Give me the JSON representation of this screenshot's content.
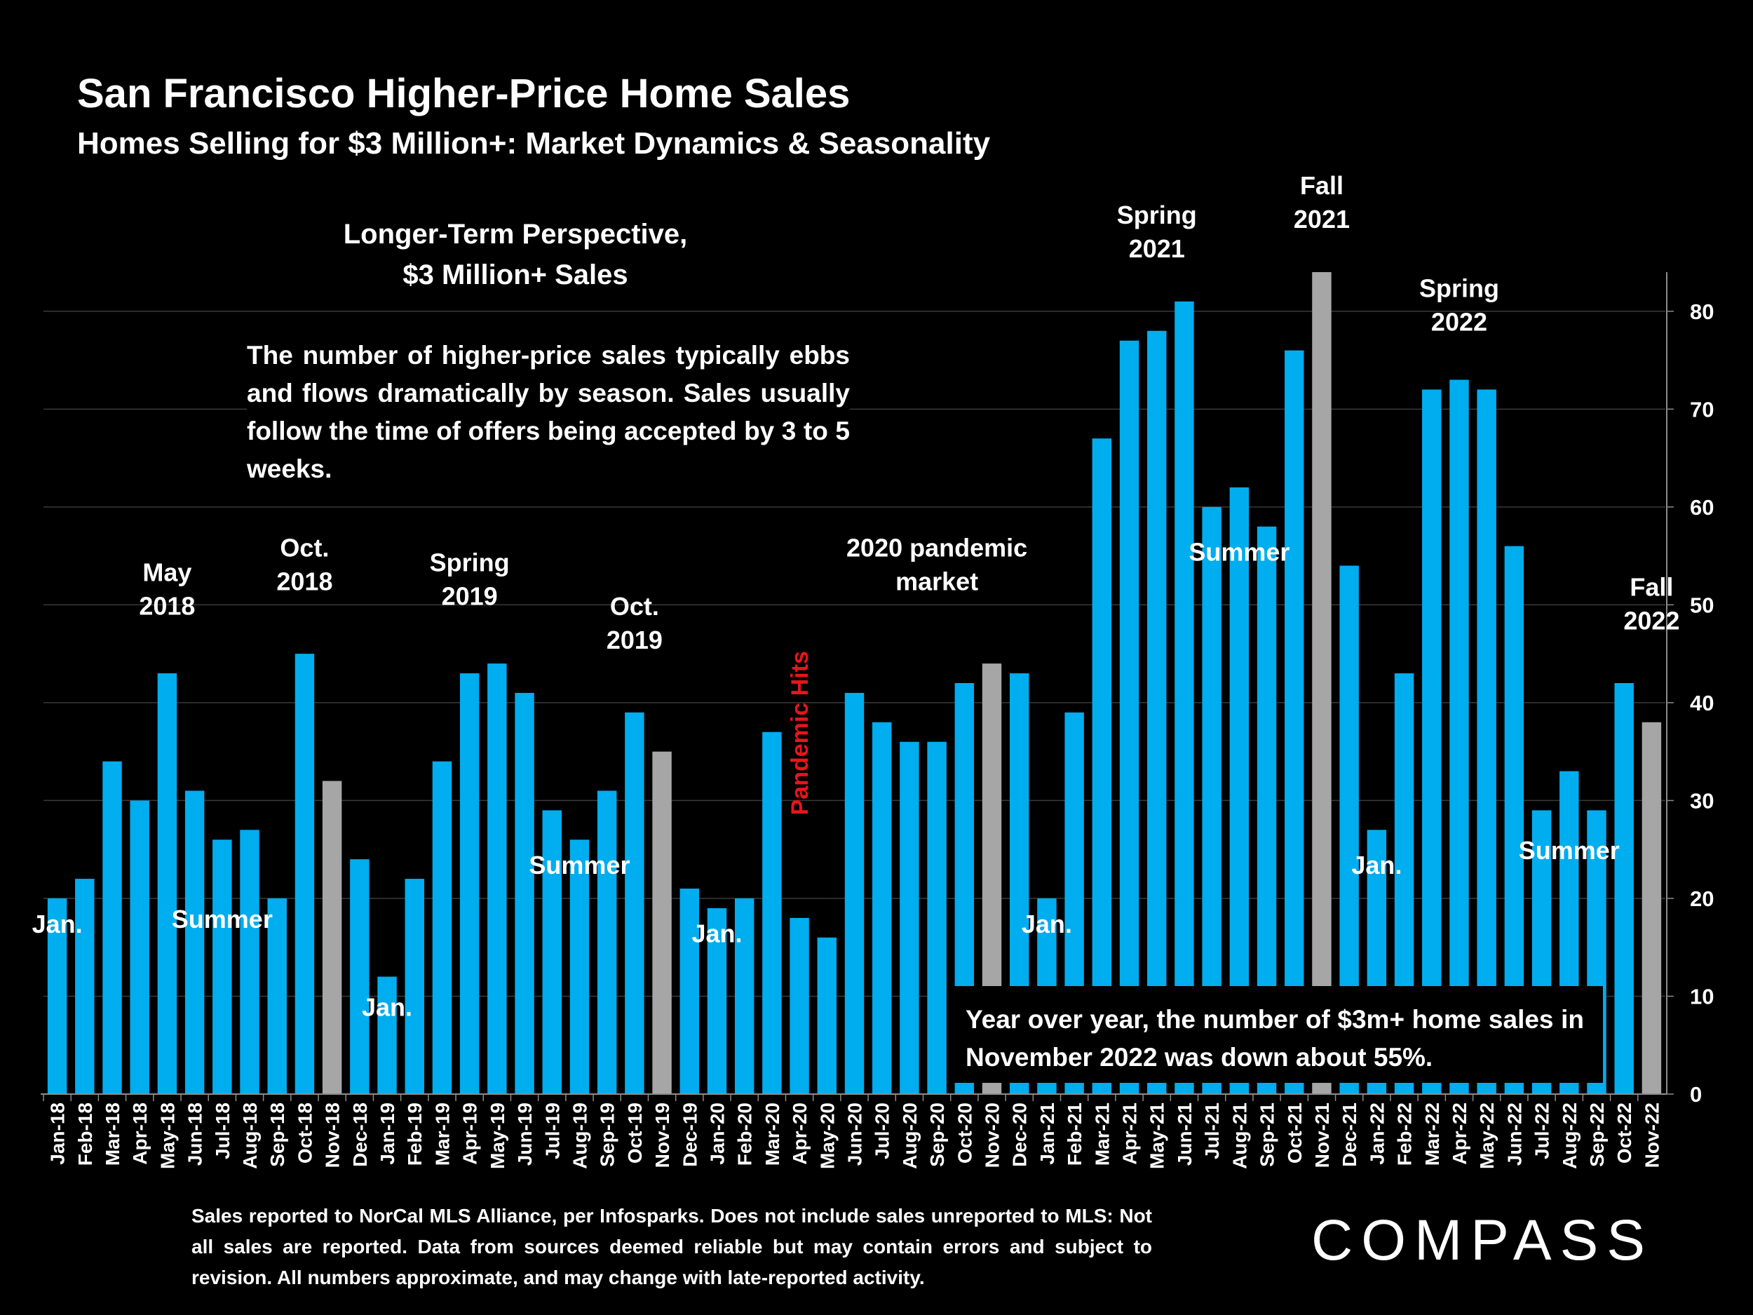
{
  "header": {
    "title": "San Francisco Higher-Price Home Sales",
    "subtitle": "Homes Selling for  $3 Million+: Market Dynamics & Seasonality"
  },
  "note": {
    "heading_line1": "Longer-Term Perspective,",
    "heading_line2": "$3 Million+ Sales",
    "body": "The number of higher-price sales typically ebbs and flows dramatically by season. Sales usually follow the time of offers being accepted by 3 to 5 weeks."
  },
  "yoy_box": "Year over year, the number of $3m+ home sales in November 2022 was down about 55%.",
  "footnote": "Sales reported to NorCal MLS Alliance, per Infosparks. Does not include sales unreported to MLS: Not all sales are reported. Data from sources deemed reliable but may contain errors and subject to revision.  All numbers approximate, and may change with late-reported activity.",
  "brand": "COMPASS",
  "chart_data": {
    "type": "bar",
    "categories": [
      "Jan-18",
      "Feb-18",
      "Mar-18",
      "Apr-18",
      "May-18",
      "Jun-18",
      "Jul-18",
      "Aug-18",
      "Sep-18",
      "Oct-18",
      "Nov-18",
      "Dec-18",
      "Jan-19",
      "Feb-19",
      "Mar-19",
      "Apr-19",
      "May-19",
      "Jun-19",
      "Jul-19",
      "Aug-19",
      "Sep-19",
      "Oct-19",
      "Nov-19",
      "Dec-19",
      "Jan-20",
      "Feb-20",
      "Mar-20",
      "Apr-20",
      "May-20",
      "Jun-20",
      "Jul-20",
      "Aug-20",
      "Sep-20",
      "Oct-20",
      "Nov-20",
      "Dec-20",
      "Jan-21",
      "Feb-21",
      "Mar-21",
      "Apr-21",
      "May-21",
      "Jun-21",
      "Jul-21",
      "Aug-21",
      "Sep-21",
      "Oct-21",
      "Nov-21",
      "Dec-21",
      "Jan-22",
      "Feb-22",
      "Mar-22",
      "Apr-22",
      "May-22",
      "Jun-22",
      "Jul-22",
      "Aug-22",
      "Sep-22",
      "Oct-22",
      "Nov-22"
    ],
    "values": [
      20,
      22,
      34,
      30,
      43,
      31,
      26,
      27,
      20,
      45,
      32,
      24,
      12,
      22,
      34,
      43,
      44,
      41,
      29,
      26,
      31,
      39,
      35,
      21,
      19,
      20,
      37,
      18,
      16,
      41,
      38,
      36,
      36,
      42,
      44,
      43,
      20,
      39,
      67,
      77,
      78,
      81,
      60,
      62,
      58,
      76,
      84,
      54,
      27,
      43,
      72,
      73,
      72,
      56,
      29,
      33,
      29,
      42,
      38
    ],
    "highlight_categories": [
      "Nov-18",
      "Nov-19",
      "Nov-20",
      "Nov-21",
      "Nov-22"
    ],
    "colors": {
      "bar": "#00adef",
      "highlight": "#a6a6a6",
      "pandemic": "#e8151b",
      "grid": "#3a3a3a"
    },
    "ylim": [
      0,
      84
    ],
    "yticks": [
      0,
      10,
      20,
      30,
      40,
      50,
      60,
      70,
      80
    ],
    "grid": true,
    "y_axis_side": "right",
    "annotations": [
      {
        "lines": [
          "Jan."
        ],
        "category": "Jan-18",
        "value": 16.5
      },
      {
        "lines": [
          "May",
          "2018"
        ],
        "category": "May-18",
        "value": 49
      },
      {
        "lines": [
          "Summer"
        ],
        "category": "Jul-18",
        "value": 17
      },
      {
        "lines": [
          "Oct.",
          "2018"
        ],
        "category": "Oct-18",
        "value": 51.5
      },
      {
        "lines": [
          "Jan."
        ],
        "category": "Jan-19",
        "value": 8
      },
      {
        "lines": [
          "Spring",
          "2019"
        ],
        "category": "Apr-19",
        "value": 50
      },
      {
        "lines": [
          "Summer"
        ],
        "category": "Aug-19",
        "value": 22.5
      },
      {
        "lines": [
          "Oct.",
          "2019"
        ],
        "category": "Oct-19",
        "value": 45.5
      },
      {
        "lines": [
          "Jan."
        ],
        "category": "Jan-20",
        "value": 15.5
      },
      {
        "lines": [
          "2020 pandemic",
          "market"
        ],
        "category": "Sep-20",
        "value": 51.5
      },
      {
        "lines": [
          "Jan."
        ],
        "category": "Jan-21",
        "value": 16.5
      },
      {
        "lines": [
          "Spring",
          "2021"
        ],
        "category": "May-21",
        "value": 85.5
      },
      {
        "lines": [
          "Summer"
        ],
        "category": "Aug-21",
        "value": 54.5
      },
      {
        "lines": [
          "Fall",
          "2021"
        ],
        "category": "Nov-21",
        "value": 88.5
      },
      {
        "lines": [
          "Jan."
        ],
        "category": "Jan-22",
        "value": 22.5
      },
      {
        "lines": [
          "Spring",
          "2022"
        ],
        "category": "Apr-22",
        "value": 78
      },
      {
        "lines": [
          "Summer"
        ],
        "category": "Aug-22",
        "value": 24
      },
      {
        "lines": [
          "Fall",
          "2022"
        ],
        "category": "Nov-22",
        "value": 47.5
      }
    ],
    "vertical_annotation": {
      "text": "Pandemic Hits",
      "category": "Apr-20",
      "value": 28.5
    }
  }
}
